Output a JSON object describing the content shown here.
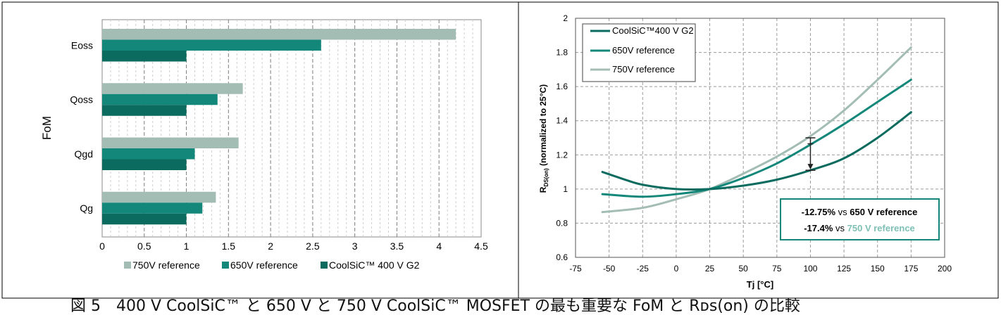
{
  "colors": {
    "ref750": "#a3bdb5",
    "ref650": "#13887a",
    "coolsic": "#0a6b5e",
    "grid": "#9a9a9a",
    "frame": "#000000"
  },
  "caption": "図 5　400 V CoolSiC™ と 650 V と 750 V CoolSiC™ MOSFET の最も重要な FoM と Rᴅs(on) の比較",
  "chart_data": [
    {
      "type": "bar",
      "orientation": "horizontal",
      "title": "",
      "ylabel": "FoM",
      "xlabel": "",
      "categories": [
        "Eoss",
        "Qoss",
        "Qgd",
        "Qg"
      ],
      "series": [
        {
          "name": "750V reference",
          "color": "#a3bdb5",
          "values": [
            4.2,
            1.67,
            1.62,
            1.35
          ]
        },
        {
          "name": "650V reference",
          "color": "#13887a",
          "values": [
            2.6,
            1.37,
            1.1,
            1.19
          ]
        },
        {
          "name": "CoolSiC™ 400 V G2",
          "color": "#0a6b5e",
          "values": [
            1,
            1,
            1,
            1
          ]
        }
      ],
      "xlim": [
        0,
        4.5
      ],
      "xticks": [
        0,
        0.5,
        1,
        1.5,
        2,
        2.5,
        3,
        3.5,
        4,
        4.5
      ],
      "xtick_labels": [
        "0",
        "0.5",
        "1",
        "1.5",
        "2",
        "2.5",
        "3",
        "3.5",
        "4",
        "4.5"
      ],
      "legend_position": "bottom",
      "legend_order": [
        0,
        1,
        2
      ],
      "grid": true
    },
    {
      "type": "line",
      "title": "",
      "xlabel": "Tj [°C]",
      "ylabel_main": "R",
      "ylabel_sub": "DS(on)",
      "ylabel_rest": " (normalized to 25°C)",
      "xlim": [
        -75,
        200
      ],
      "ylim": [
        0.6,
        2
      ],
      "xticks": [
        -75,
        -50,
        -25,
        0,
        25,
        50,
        75,
        100,
        125,
        150,
        175,
        200
      ],
      "xtick_labels": [
        "-75",
        "-50",
        "-25",
        "0",
        "25",
        "50",
        "75",
        "100",
        "125",
        "150",
        "175",
        "200"
      ],
      "yticks": [
        0.6,
        0.8,
        1,
        1.2,
        1.4,
        1.6,
        1.8,
        2
      ],
      "ytick_labels": [
        "0.6",
        "0.8",
        "1",
        "1.2",
        "1.4",
        "1.6",
        "1.8",
        "2"
      ],
      "series": [
        {
          "name": "CoolSiC™400 V G2",
          "color": "#0a6b5e",
          "x": [
            -55,
            -40,
            -25,
            0,
            25,
            50,
            75,
            100,
            125,
            150,
            175
          ],
          "y": [
            1.1,
            1.06,
            1.025,
            1.0,
            1.0,
            1.02,
            1.055,
            1.11,
            1.18,
            1.3,
            1.45
          ]
        },
        {
          "name": "650V reference",
          "color": "#13887a",
          "x": [
            -55,
            -25,
            0,
            25,
            50,
            75,
            100,
            125,
            150,
            175
          ],
          "y": [
            0.97,
            0.955,
            0.97,
            1.0,
            1.065,
            1.15,
            1.26,
            1.38,
            1.51,
            1.64
          ]
        },
        {
          "name": "750V reference",
          "color": "#a3bdb5",
          "x": [
            -55,
            -25,
            0,
            25,
            50,
            75,
            100,
            125,
            150,
            175
          ],
          "y": [
            0.865,
            0.89,
            0.94,
            1.0,
            1.09,
            1.19,
            1.31,
            1.46,
            1.64,
            1.83
          ]
        }
      ],
      "annotation_arrow": {
        "x": 100,
        "y_from": 1.3,
        "y_to": 1.11
      },
      "annotation_box": {
        "line1_bold": "-12.75%",
        "line1_mid": " vs ",
        "line1_ref": "650 V reference",
        "line2_bold": "-17.4%",
        "line2_mid": " vs ",
        "line2_ref": "750 V reference",
        "border_color": "#13887a",
        "line2_ref_color": "#7fc0b5"
      },
      "legend_position": "top-left",
      "grid": true
    }
  ]
}
